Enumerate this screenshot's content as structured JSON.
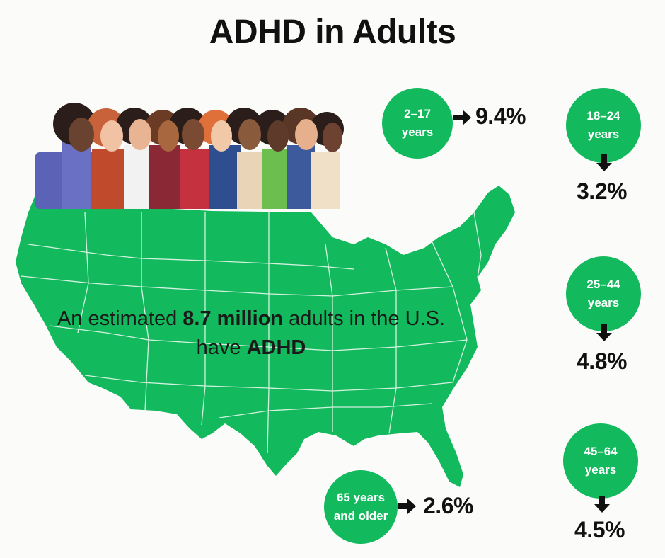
{
  "title": "ADHD in Adults",
  "caption": {
    "pre": "An estimated ",
    "highlight": "8.7 million",
    "mid": " adults in the U.S. have ",
    "highlight2": "ADHD"
  },
  "colors": {
    "green": "#12b95d",
    "text": "#111111",
    "background": "#fbfbf9"
  },
  "groups": [
    {
      "label_line1": "2–17",
      "label_line2": "years",
      "value": "9.4%"
    },
    {
      "label_line1": "18–24",
      "label_line2": "years",
      "value": "3.2%"
    },
    {
      "label_line1": "25–44",
      "label_line2": "years",
      "value": "4.8%"
    },
    {
      "label_line1": "45–64",
      "label_line2": "years",
      "value": "4.5%"
    },
    {
      "label_line1": "65 years",
      "label_line2": "and older",
      "value": "2.6%"
    }
  ],
  "illustration": {
    "map": "us-map-icon",
    "people": "diverse-people-illustration"
  }
}
